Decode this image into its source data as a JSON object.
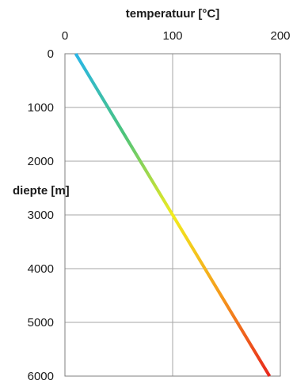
{
  "chart_data": {
    "type": "line",
    "xlabel": "temperatuur [°C]",
    "ylabel": "diepte [m]",
    "xlim": [
      0,
      200
    ],
    "ylim": [
      0,
      6000
    ],
    "y_inverted": true,
    "x_axis_position": "top",
    "x_ticks": [
      "0",
      "100",
      "200"
    ],
    "y_ticks": [
      "0",
      "1000",
      "2000",
      "3000",
      "4000",
      "5000",
      "6000"
    ],
    "grid": true,
    "line_gradient": [
      "#29b6e8",
      "#4cc47a",
      "#f2ec1e",
      "#f59a1c",
      "#e8261c"
    ],
    "series": [
      {
        "x": [
          10,
          190
        ],
        "y": [
          0,
          6000
        ]
      }
    ]
  }
}
